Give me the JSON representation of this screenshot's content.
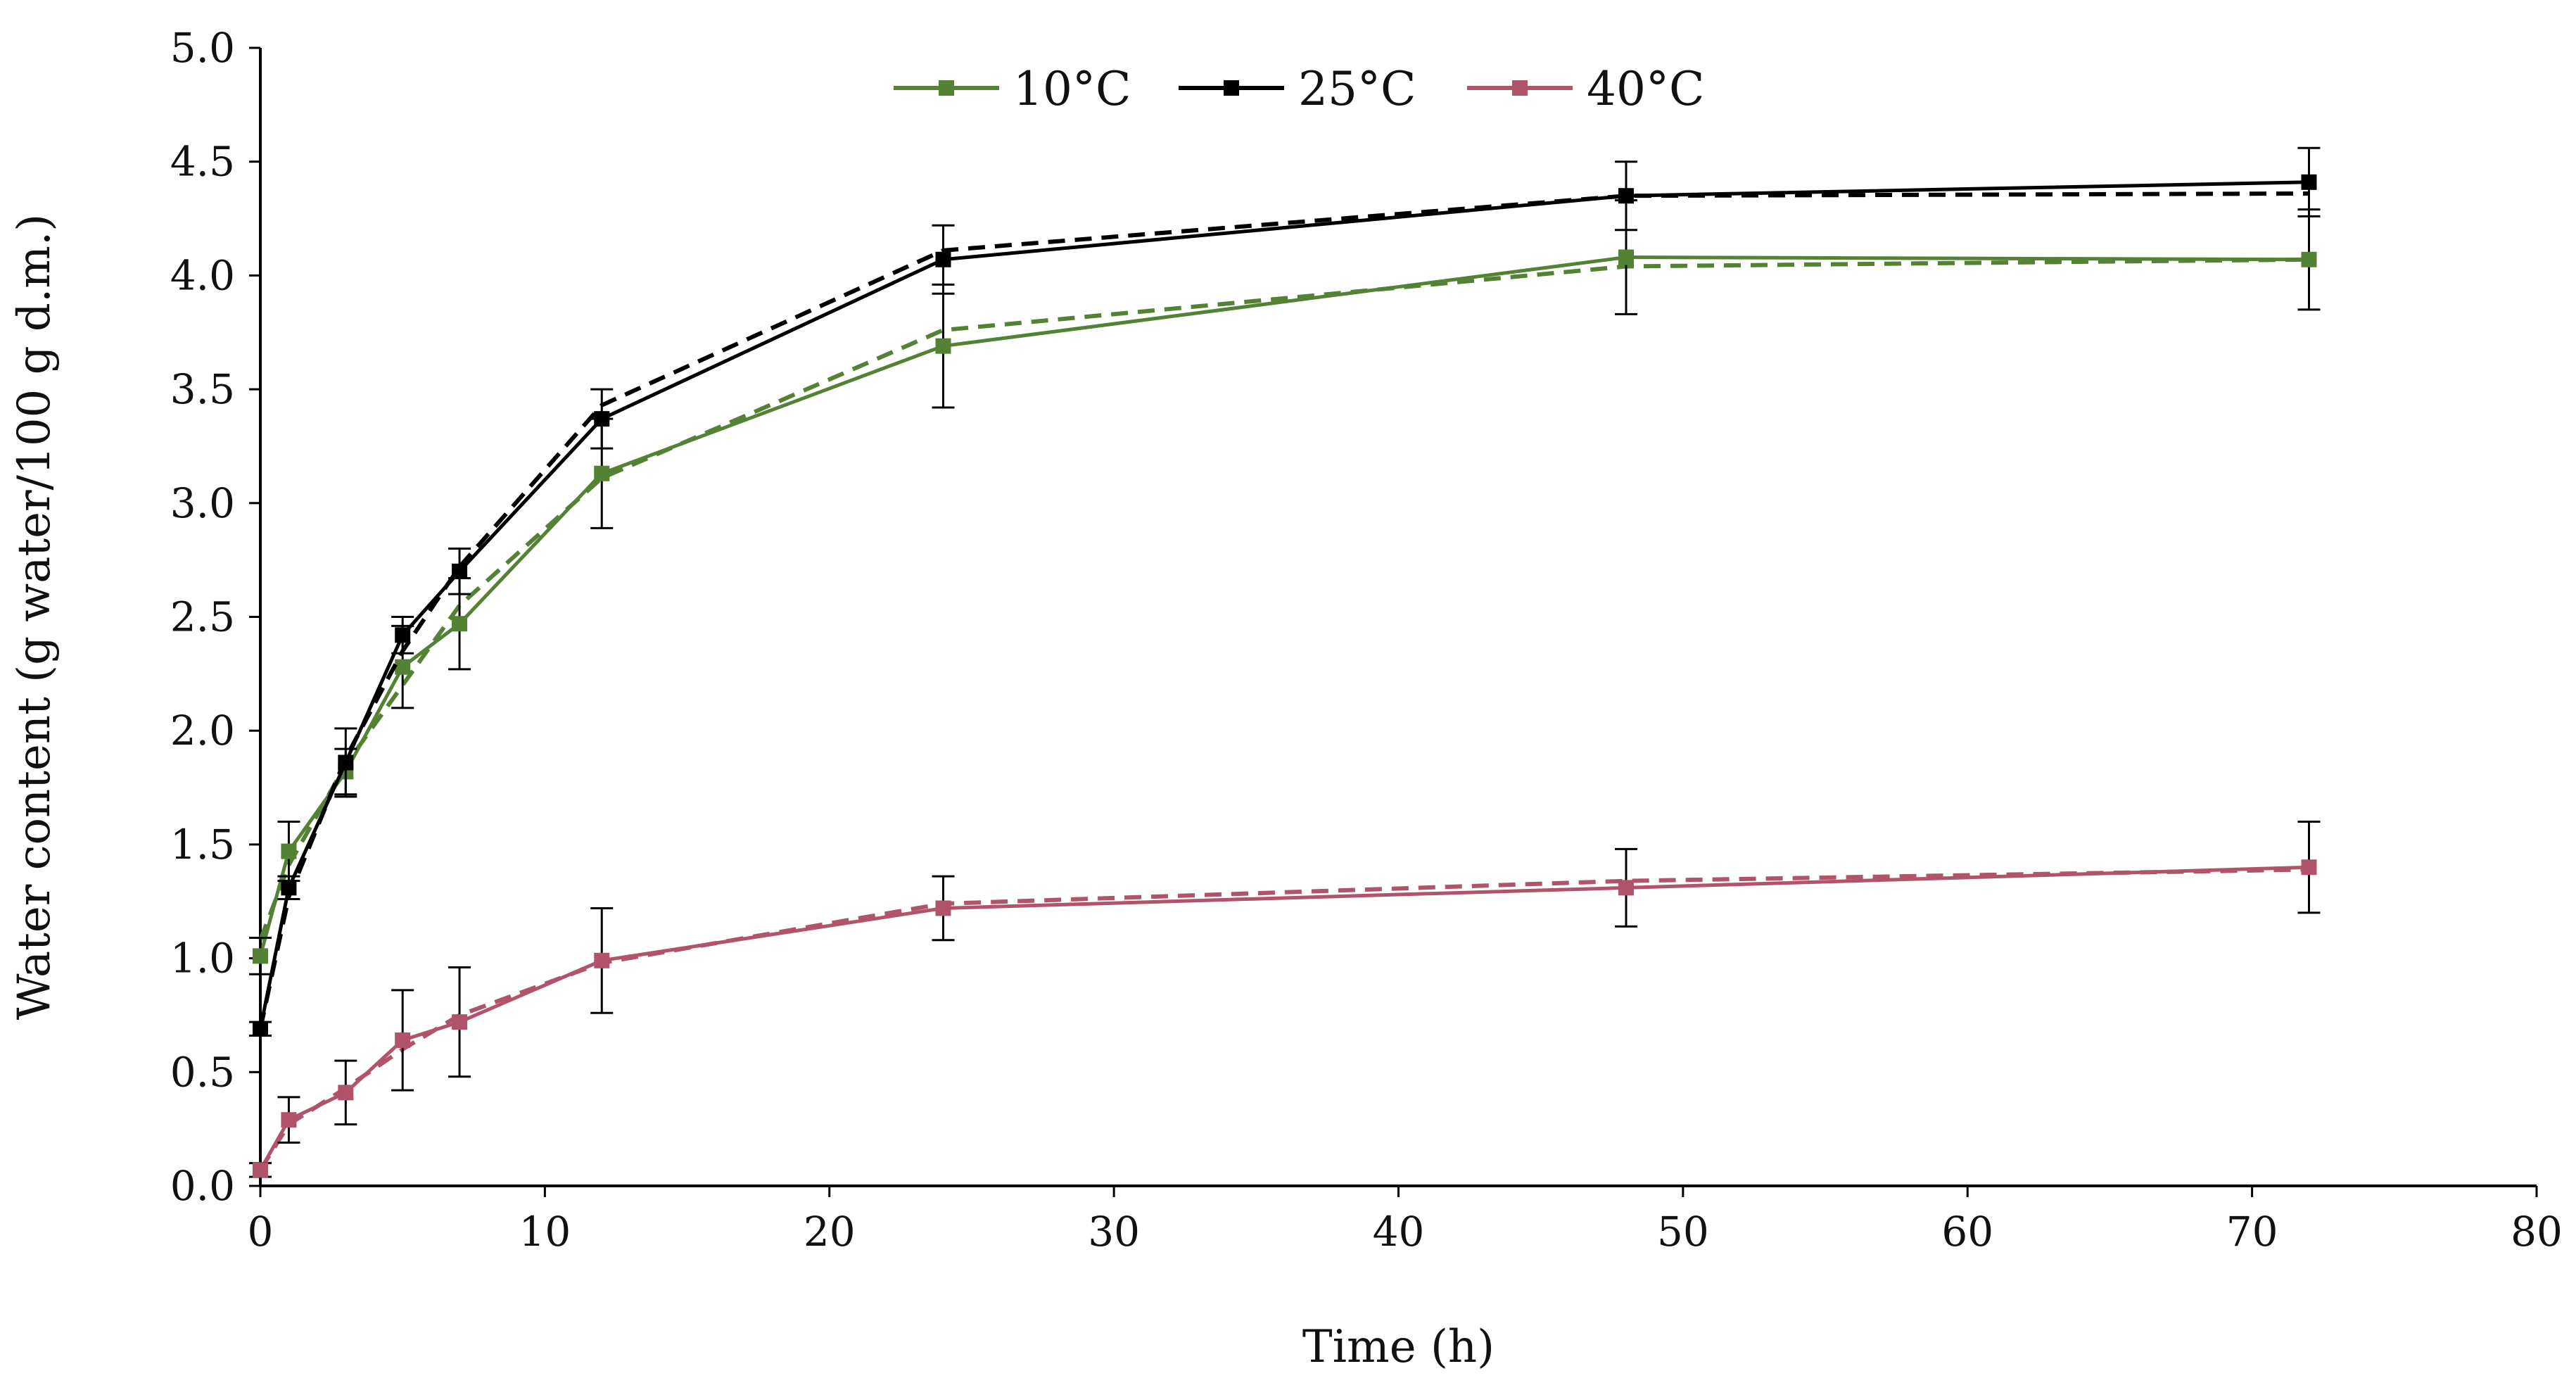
{
  "chart_data": {
    "type": "line",
    "title": "",
    "xlabel": "Time (h)",
    "ylabel": "Water content (g water/100 g d.m.)",
    "xlim": [
      0,
      80
    ],
    "ylim": [
      0,
      5.0
    ],
    "x_ticks": [
      "0",
      "10",
      "20",
      "30",
      "40",
      "50",
      "60",
      "70",
      "80"
    ],
    "y_ticks": [
      "0.0",
      "0.5",
      "1.0",
      "1.5",
      "2.0",
      "2.5",
      "3.0",
      "3.5",
      "4.0",
      "4.5",
      "5.0"
    ],
    "grid": false,
    "legend_position": "top-center",
    "x": [
      0,
      1,
      3,
      5,
      7,
      12,
      24,
      48,
      72
    ],
    "series": [
      {
        "name": "10°C",
        "color": "#548235",
        "values": [
          1.01,
          1.47,
          1.82,
          2.28,
          2.47,
          3.13,
          3.69,
          4.08,
          4.07
        ],
        "errors": [
          0.08,
          0.13,
          0.1,
          0.18,
          0.2,
          0.24,
          0.27,
          0.25,
          0.22
        ],
        "fitted": [
          1.08,
          1.41,
          1.85,
          2.2,
          2.55,
          3.11,
          3.76,
          4.04,
          4.07
        ]
      },
      {
        "name": "25°C",
        "color": "#000000",
        "values": [
          0.69,
          1.31,
          1.86,
          2.42,
          2.7,
          3.37,
          4.07,
          4.35,
          4.41
        ],
        "errors": [
          0.03,
          0.05,
          0.15,
          0.08,
          0.1,
          0.13,
          0.15,
          0.15,
          0.15
        ],
        "fitted": [
          0.69,
          1.27,
          1.88,
          2.35,
          2.72,
          3.43,
          4.11,
          4.35,
          4.36
        ]
      },
      {
        "name": "40°C",
        "color": "#B0536B",
        "values": [
          0.07,
          0.29,
          0.41,
          0.64,
          0.72,
          0.99,
          1.22,
          1.31,
          1.4
        ],
        "errors": [
          0.03,
          0.1,
          0.14,
          0.22,
          0.24,
          0.23,
          0.14,
          0.17,
          0.2
        ],
        "fitted": [
          0.07,
          0.27,
          0.43,
          0.6,
          0.75,
          0.98,
          1.24,
          1.34,
          1.39
        ]
      }
    ]
  }
}
